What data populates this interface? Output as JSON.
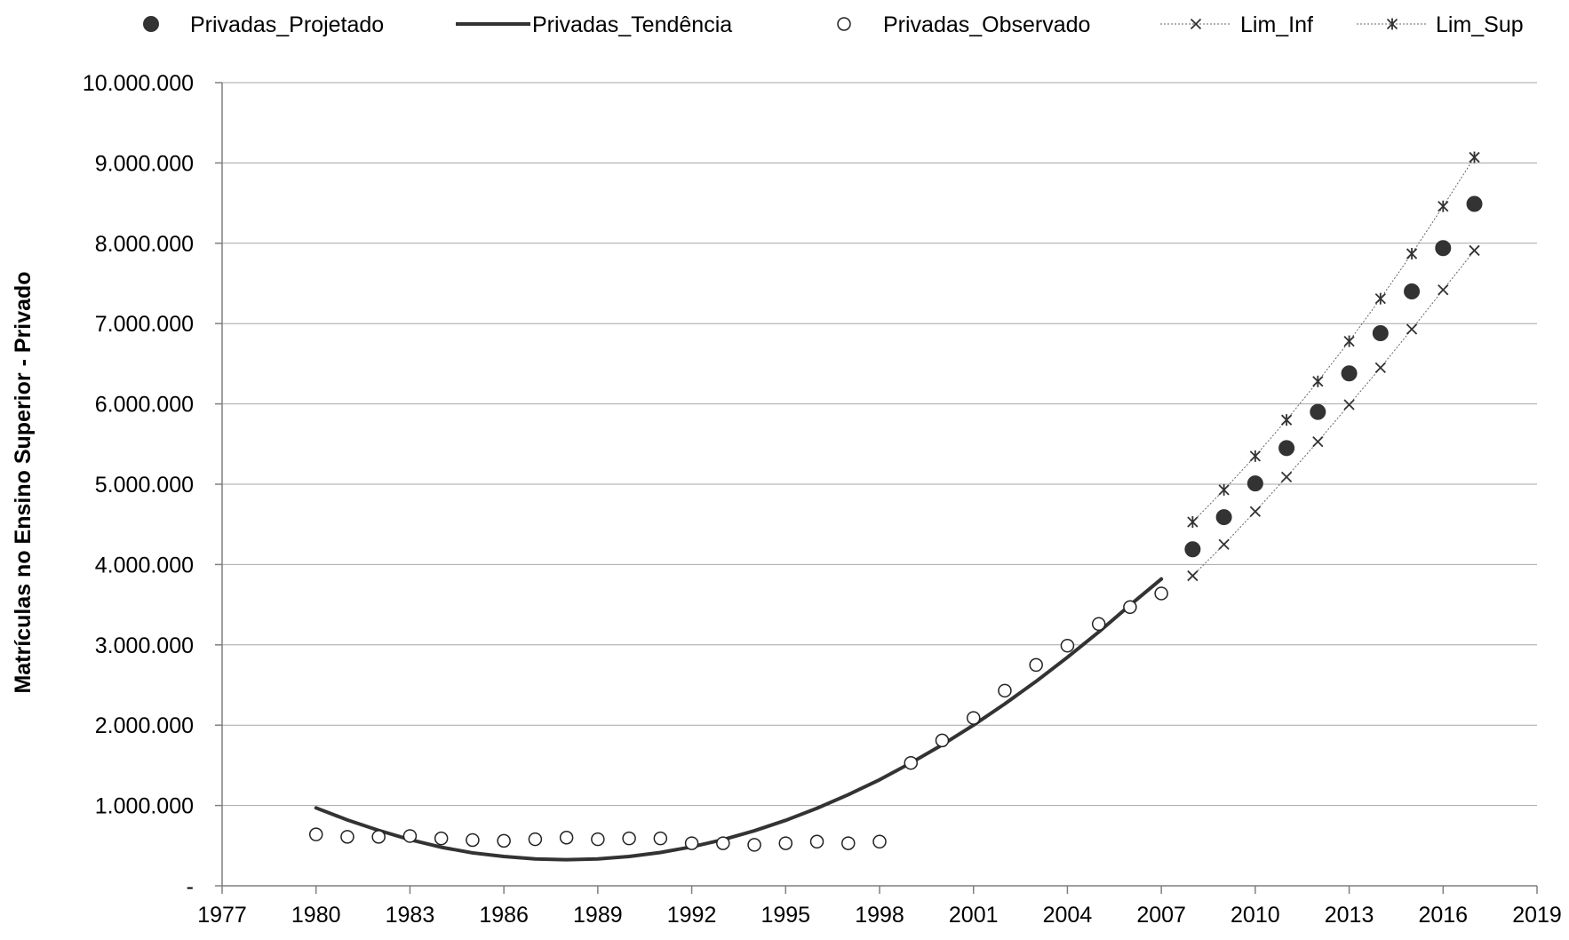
{
  "chart_data": {
    "type": "scatter",
    "title": "",
    "xlabel": "",
    "ylabel": "Matrículas no Ensino Superior - Privado",
    "xlim": [
      1977,
      2019
    ],
    "ylim": [
      0,
      10000000
    ],
    "x_ticks": [
      1977,
      1980,
      1983,
      1986,
      1989,
      1992,
      1995,
      1998,
      2001,
      2004,
      2007,
      2010,
      2013,
      2016,
      2019
    ],
    "x_tick_labels": [
      "1977",
      "1980",
      "1983",
      "1986",
      "1989",
      "1992",
      "1995",
      "1998",
      "2001",
      "2004",
      "2007",
      "2010",
      "2013",
      "2016",
      "2019"
    ],
    "y_ticks": [
      0,
      1000000,
      2000000,
      3000000,
      4000000,
      5000000,
      6000000,
      7000000,
      8000000,
      9000000,
      10000000
    ],
    "y_tick_labels": [
      "-",
      "1.000.000",
      "2.000.000",
      "3.000.000",
      "4.000.000",
      "5.000.000",
      "6.000.000",
      "7.000.000",
      "8.000.000",
      "9.000.000",
      "10.000.000"
    ],
    "grid": "horizontal",
    "legend_position": "top",
    "series": [
      {
        "name": "Privadas_Projetado",
        "style": "filled-circle",
        "color": "#333333",
        "x": [
          2008,
          2009,
          2010,
          2011,
          2012,
          2013,
          2014,
          2015,
          2016,
          2017
        ],
        "y": [
          4190000,
          4590000,
          5010000,
          5450000,
          5900000,
          6380000,
          6880000,
          7400000,
          7940000,
          8490000
        ]
      },
      {
        "name": "Privadas_Tendência",
        "style": "line",
        "color": "#333333",
        "x": [
          1980,
          1981,
          1982,
          1983,
          1984,
          1985,
          1986,
          1987,
          1988,
          1989,
          1990,
          1991,
          1992,
          1993,
          1994,
          1995,
          1996,
          1997,
          1998,
          1999,
          2000,
          2001,
          2002,
          2003,
          2004,
          2005,
          2006,
          2007
        ],
        "y": [
          970000,
          820000,
          690000,
          575000,
          480000,
          410000,
          365000,
          335000,
          325000,
          335000,
          365000,
          415000,
          485000,
          575000,
          685000,
          815000,
          965000,
          1135000,
          1320000,
          1530000,
          1755000,
          2000000,
          2265000,
          2545000,
          2845000,
          3160000,
          3495000,
          3820000
        ]
      },
      {
        "name": "Privadas_Observado",
        "style": "open-circle",
        "color": "#333333",
        "x": [
          1980,
          1981,
          1982,
          1983,
          1984,
          1985,
          1986,
          1987,
          1988,
          1989,
          1990,
          1991,
          1992,
          1993,
          1994,
          1995,
          1996,
          1997,
          1998,
          1999,
          2000,
          2001,
          2002,
          2003,
          2004,
          2005,
          2006,
          2007
        ],
        "y": [
          640000,
          610000,
          610000,
          620000,
          590000,
          570000,
          560000,
          580000,
          600000,
          580000,
          590000,
          590000,
          530000,
          530000,
          510000,
          530000,
          550000,
          530000,
          550000,
          1530000,
          1810000,
          2090000,
          2430000,
          2750000,
          2990000,
          3260000,
          3470000,
          3640000
        ]
      },
      {
        "name": "Lim_Inf",
        "style": "x-marker-dotted",
        "color": "#333333",
        "x": [
          2008,
          2009,
          2010,
          2011,
          2012,
          2013,
          2014,
          2015,
          2016,
          2017
        ],
        "y": [
          3860000,
          4250000,
          4660000,
          5090000,
          5530000,
          5990000,
          6450000,
          6930000,
          7420000,
          7910000
        ]
      },
      {
        "name": "Lim_Sup",
        "style": "star-marker-dotted",
        "color": "#333333",
        "x": [
          2008,
          2009,
          2010,
          2011,
          2012,
          2013,
          2014,
          2015,
          2016,
          2017
        ],
        "y": [
          4530000,
          4930000,
          5350000,
          5800000,
          6280000,
          6780000,
          7310000,
          7870000,
          8460000,
          9070000
        ]
      }
    ]
  }
}
